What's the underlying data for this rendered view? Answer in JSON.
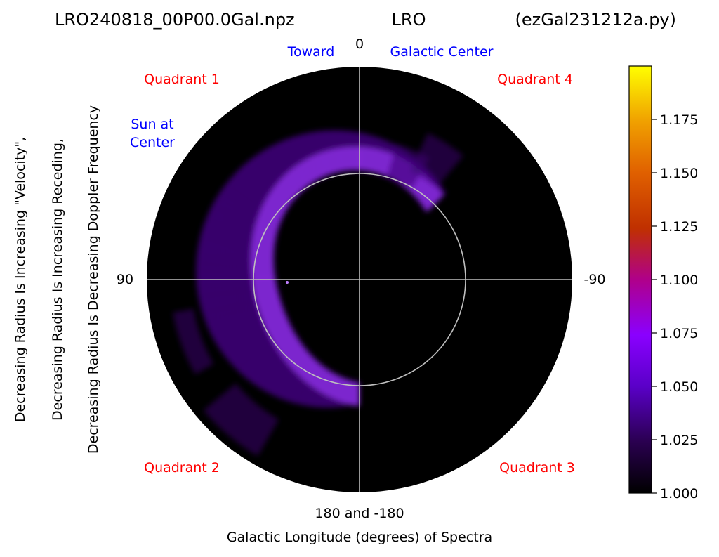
{
  "chart_data": {
    "type": "heatmap",
    "projection": "polar",
    "title_left": "LRO240818_00P00.0Gal.npz",
    "title_center": "LRO",
    "title_right": "(ezGal231212a.py)",
    "xlabel": "Galactic Longitude (degrees) of Spectra",
    "ylabel_lines": [
      "Decreasing Radius Is Increasing \"Velocity\",",
      "Decreasing Radius Is Increasing Receding,",
      "Decreasing Radius Is Decreasing Doppler Frequency"
    ],
    "angle_labels": {
      "top": "0",
      "left": "90",
      "right": "-90",
      "bottom": "180 and -180"
    },
    "annotations": {
      "toward": "Toward",
      "galactic_center": "Galactic Center",
      "sun_at": "Sun at",
      "center": "Center",
      "quadrant1": "Quadrant 1",
      "quadrant2": "Quadrant 2",
      "quadrant3": "Quadrant 3",
      "quadrant4": "Quadrant 4"
    },
    "colors": {
      "background": "#000000",
      "grid": "#bfbfbf",
      "quadrant_text": "#ff0000",
      "direction_text": "#0000ff"
    },
    "colormap": "gnuplot",
    "colorbar": {
      "range": [
        1.0,
        1.2
      ],
      "ticks": [
        "1.000",
        "1.025",
        "1.050",
        "1.075",
        "1.100",
        "1.125",
        "1.150",
        "1.175"
      ],
      "tick_values": [
        1.0,
        1.025,
        1.05,
        1.075,
        1.1,
        1.125,
        1.15,
        1.175
      ]
    },
    "grid": true,
    "spectra_arc": {
      "longitude_range_deg": [
        -45,
        180
      ],
      "peak_value": 1.06
    }
  }
}
